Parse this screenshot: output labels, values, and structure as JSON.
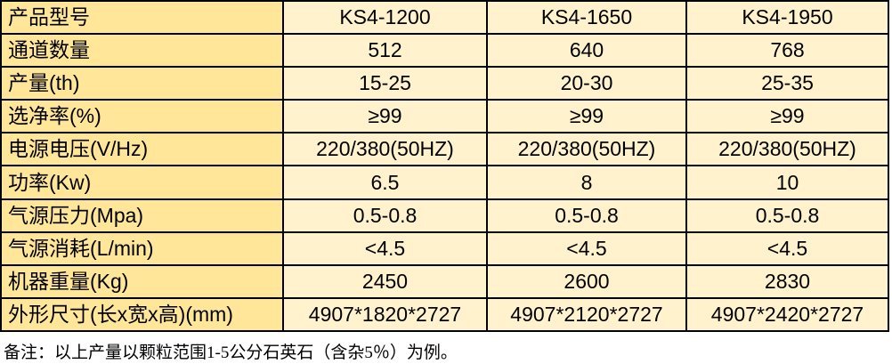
{
  "colors": {
    "label_bg": "#FFE699",
    "value_bg": "#FFF2CC",
    "border": "#000000",
    "text": "#000000",
    "page_bg": "#FFFFFF"
  },
  "table": {
    "rows": [
      {
        "label": "产品型号",
        "values": [
          "KS4-1200",
          "KS4-1650",
          "KS4-1950"
        ]
      },
      {
        "label": "通道数量",
        "values": [
          "512",
          "640",
          "768"
        ]
      },
      {
        "label": "产量(th)",
        "values": [
          "15-25",
          "20-30",
          "25-35"
        ]
      },
      {
        "label": "选净率(%)",
        "values": [
          "≥99",
          "≥99",
          "≥99"
        ]
      },
      {
        "label": "电源电压(V/Hz)",
        "values": [
          "220/380(50HZ)",
          "220/380(50HZ)",
          "220/380(50HZ)"
        ]
      },
      {
        "label": "功率(Kw)",
        "values": [
          "6.5",
          "8",
          "10"
        ]
      },
      {
        "label": "气源压力(Mpa)",
        "values": [
          "0.5-0.8",
          "0.5-0.8",
          "0.5-0.8"
        ]
      },
      {
        "label": "气源消耗(L/min)",
        "values": [
          "<4.5",
          "<4.5",
          "<4.5"
        ]
      },
      {
        "label": "机器重量(Kg)",
        "values": [
          "2450",
          "2600",
          "2830"
        ]
      },
      {
        "label": "外形尺寸(长x宽x高)(mm)",
        "values": [
          "4907*1820*2727",
          "4907*2120*2727",
          "4907*2420*2727"
        ]
      }
    ]
  },
  "note": "备注：以上产量以颗粒范围1-5公分石英石（含杂5％）为例。"
}
